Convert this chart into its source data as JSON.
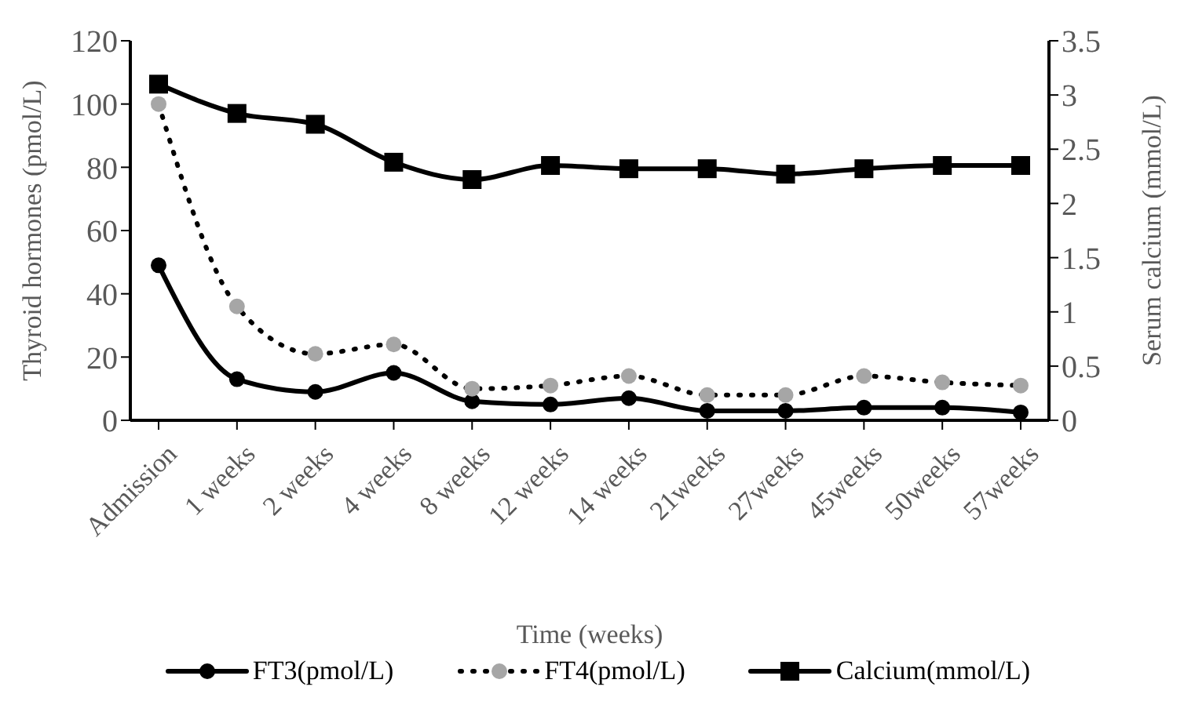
{
  "chart_data": {
    "type": "line",
    "xlabel": "Time  (weeks)",
    "ylabel": "Thyroid  hormones (pmol/L)",
    "y2label": "Serum  calcium (mmol/L)",
    "categories": [
      "Admission",
      "1 weeks",
      "2 weeks",
      "4 weeks",
      "8 weeks",
      "12 weeks",
      "14 weeks",
      "21weeks",
      "27weeks",
      "45weeks",
      "50weeks",
      "57weeks"
    ],
    "series": [
      {
        "name": "FT3(pmol/L)",
        "color": "#000000",
        "marker": "circle",
        "line_style": "solid",
        "values": [
          49,
          13,
          9,
          15,
          6,
          5,
          7,
          3,
          3,
          4,
          4,
          2.5
        ]
      },
      {
        "name": "FT4(pmol/L)",
        "color": "#a6a6a6",
        "marker": "circle",
        "line_style": "dotted",
        "values": [
          100,
          36,
          21,
          24,
          10,
          11,
          14,
          8,
          8,
          14,
          12,
          11
        ]
      },
      {
        "name": "Calcium(mmol/L)",
        "color": "#000000",
        "marker": "square",
        "line_style": "solid",
        "axis": "y2",
        "values": [
          3.1,
          2.83,
          2.73,
          2.38,
          2.22,
          2.35,
          2.32,
          2.32,
          2.27,
          2.32,
          2.35,
          2.35
        ]
      }
    ],
    "ylim": [
      0,
      120
    ],
    "yticks": [
      0,
      20,
      40,
      60,
      80,
      100,
      120
    ],
    "y2lim": [
      0,
      3.5
    ],
    "y2ticks": [
      0,
      0.5,
      1,
      1.5,
      2,
      2.5,
      3,
      3.5
    ],
    "grid": false,
    "legend": "bottom"
  }
}
